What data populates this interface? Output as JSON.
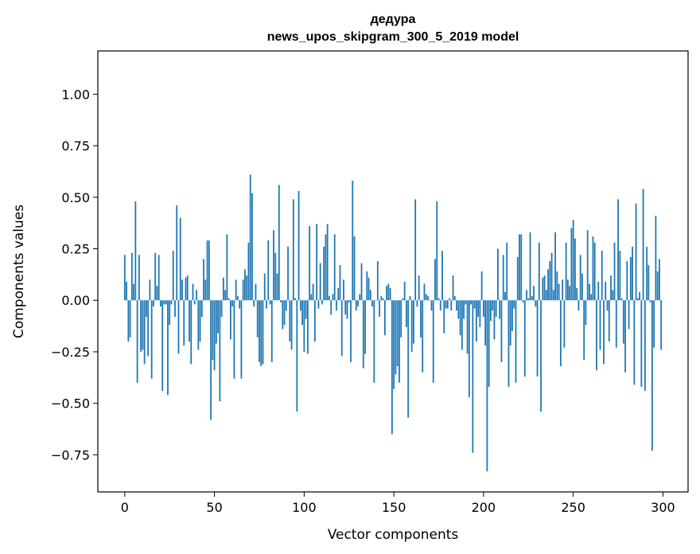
{
  "chart_data": {
    "type": "bar",
    "title": "дедура",
    "subtitle": "news_upos_skipgram_300_5_2019 model",
    "xlabel": "Vector components",
    "ylabel": "Components values",
    "xlim": [
      -15,
      314
    ],
    "ylim": [
      -0.93,
      1.21
    ],
    "xticks": [
      0,
      50,
      100,
      150,
      200,
      250,
      300
    ],
    "yticks": [
      -0.75,
      -0.5,
      -0.25,
      0.0,
      0.25,
      0.5,
      0.75,
      1.0
    ],
    "ytick_labels": [
      "−0.75",
      "−0.50",
      "−0.25",
      "0.00",
      "0.25",
      "0.50",
      "0.75",
      "1.00"
    ],
    "bar_color": "#1f77b4",
    "grid": false,
    "x": [
      0,
      1,
      2,
      3,
      4,
      5,
      6,
      7,
      8,
      9,
      10,
      11,
      12,
      13,
      14,
      15,
      16,
      17,
      18,
      19,
      20,
      21,
      22,
      23,
      24,
      25,
      26,
      27,
      28,
      29,
      30,
      31,
      32,
      33,
      34,
      35,
      36,
      37,
      38,
      39,
      40,
      41,
      42,
      43,
      44,
      45,
      46,
      47,
      48,
      49,
      50,
      51,
      52,
      53,
      54,
      55,
      56,
      57,
      58,
      59,
      60,
      61,
      62,
      63,
      64,
      65,
      66,
      67,
      68,
      69,
      70,
      71,
      72,
      73,
      74,
      75,
      76,
      77,
      78,
      79,
      80,
      81,
      82,
      83,
      84,
      85,
      86,
      87,
      88,
      89,
      90,
      91,
      92,
      93,
      94,
      95,
      96,
      97,
      98,
      99,
      100,
      101,
      102,
      103,
      104,
      105,
      106,
      107,
      108,
      109,
      110,
      111,
      112,
      113,
      114,
      115,
      116,
      117,
      118,
      119,
      120,
      121,
      122,
      123,
      124,
      125,
      126,
      127,
      128,
      129,
      130,
      131,
      132,
      133,
      134,
      135,
      136,
      137,
      138,
      139,
      140,
      141,
      142,
      143,
      144,
      145,
      146,
      147,
      148,
      149,
      150,
      151,
      152,
      153,
      154,
      155,
      156,
      157,
      158,
      159,
      160,
      161,
      162,
      163,
      164,
      165,
      166,
      167,
      168,
      169,
      170,
      171,
      172,
      173,
      174,
      175,
      176,
      177,
      178,
      179,
      180,
      181,
      182,
      183,
      184,
      185,
      186,
      187,
      188,
      189,
      190,
      191,
      192,
      193,
      194,
      195,
      196,
      197,
      198,
      199,
      200,
      201,
      202,
      203,
      204,
      205,
      206,
      207,
      208,
      209,
      210,
      211,
      212,
      213,
      214,
      215,
      216,
      217,
      218,
      219,
      220,
      221,
      222,
      223,
      224,
      225,
      226,
      227,
      228,
      229,
      230,
      231,
      232,
      233,
      234,
      235,
      236,
      237,
      238,
      239,
      240,
      241,
      242,
      243,
      244,
      245,
      246,
      247,
      248,
      249,
      250,
      251,
      252,
      253,
      254,
      255,
      256,
      257,
      258,
      259,
      260,
      261,
      262,
      263,
      264,
      265,
      266,
      267,
      268,
      269,
      270,
      271,
      272,
      273,
      274,
      275,
      276,
      277,
      278,
      279,
      280,
      281,
      282,
      283,
      284,
      285,
      286,
      287,
      288,
      289,
      290,
      291,
      292,
      293,
      294,
      295,
      296,
      297,
      298,
      299
    ],
    "values": [
      0.22,
      0.09,
      -0.2,
      -0.18,
      0.23,
      0.08,
      0.48,
      -0.4,
      0.22,
      -0.25,
      -0.24,
      -0.31,
      -0.08,
      -0.27,
      0.1,
      -0.38,
      -0.03,
      0.23,
      0.07,
      0.22,
      -0.03,
      -0.44,
      -0.02,
      -0.02,
      -0.46,
      -0.12,
      -0.02,
      0.24,
      -0.08,
      0.46,
      -0.26,
      0.4,
      0.1,
      -0.22,
      0.11,
      0.12,
      -0.2,
      -0.31,
      0.08,
      -0.02,
      0.05,
      -0.24,
      -0.2,
      -0.08,
      0.2,
      0.1,
      0.29,
      0.29,
      -0.58,
      -0.29,
      -0.34,
      -0.21,
      -0.16,
      -0.49,
      -0.08,
      0.11,
      0.05,
      0.32,
      0.01,
      -0.19,
      -0.03,
      -0.38,
      0.1,
      0.02,
      -0.04,
      -0.38,
      0.1,
      0.15,
      0.12,
      0.28,
      0.61,
      0.52,
      -0.03,
      0.08,
      -0.18,
      -0.3,
      -0.32,
      -0.31,
      0.13,
      -0.04,
      0.29,
      -0.02,
      -0.3,
      0.34,
      0.23,
      0.13,
      0.56,
      -0.01,
      -0.14,
      -0.12,
      -0.05,
      0.26,
      -0.2,
      -0.24,
      0.49,
      0.01,
      -0.54,
      0.53,
      -0.05,
      -0.12,
      -0.25,
      -0.09,
      -0.26,
      0.36,
      0.03,
      0.08,
      -0.2,
      0.37,
      -0.04,
      0.18,
      -0.02,
      0.26,
      0.32,
      0.37,
      0.02,
      -0.07,
      0.03,
      0.32,
      -0.05,
      0.06,
      0.17,
      -0.27,
      0.1,
      -0.07,
      -0.09,
      -0.01,
      -0.3,
      0.58,
      0.31,
      -0.05,
      -0.03,
      0.03,
      0.18,
      -0.33,
      -0.26,
      0.14,
      0.11,
      0.05,
      -0.03,
      -0.4,
      0.0,
      0.19,
      -0.08,
      0.02,
      0.01,
      -0.17,
      0.07,
      0.08,
      0.06,
      -0.65,
      -0.43,
      -0.36,
      -0.32,
      -0.4,
      -0.18,
      0.01,
      0.09,
      -0.13,
      -0.57,
      0.02,
      -0.25,
      -0.21,
      0.49,
      -0.03,
      0.12,
      -0.18,
      -0.35,
      0.08,
      0.03,
      0.02,
      0.0,
      -0.05,
      -0.4,
      0.2,
      0.48,
      0.01,
      -0.05,
      0.24,
      -0.16,
      -0.04,
      -0.04,
      0.01,
      -0.05,
      0.12,
      0.02,
      -0.05,
      -0.09,
      -0.17,
      -0.24,
      -0.09,
      -0.02,
      -0.26,
      -0.47,
      -0.02,
      -0.74,
      -0.04,
      -0.2,
      -0.08,
      -0.13,
      0.14,
      -0.08,
      -0.22,
      -0.83,
      -0.42,
      -0.1,
      -0.05,
      -0.19,
      -0.08,
      0.25,
      -0.09,
      -0.3,
      0.22,
      0.04,
      0.28,
      -0.42,
      -0.22,
      -0.15,
      -0.04,
      -0.4,
      0.21,
      0.32,
      0.32,
      -0.01,
      -0.37,
      0.05,
      0.01,
      0.33,
      0.02,
      0.07,
      -0.03,
      -0.37,
      0.28,
      -0.54,
      0.11,
      0.12,
      0.05,
      0.15,
      0.19,
      0.23,
      0.05,
      0.33,
      0.14,
      0.08,
      -0.32,
      0.1,
      -0.23,
      0.28,
      0.1,
      0.07,
      0.35,
      0.39,
      0.3,
      0.06,
      -0.05,
      0.22,
      0.13,
      -0.29,
      -0.12,
      0.34,
      0.08,
      0.03,
      0.31,
      0.28,
      -0.34,
      0.09,
      -0.24,
      0.24,
      -0.31,
      0.09,
      -0.05,
      -0.2,
      0.12,
      0.05,
      0.28,
      -0.23,
      0.49,
      0.24,
      0.01,
      -0.21,
      -0.35,
      0.19,
      -0.14,
      0.21,
      0.26,
      -0.41,
      0.47,
      0.01,
      0.04,
      -0.42,
      0.54,
      -0.44,
      0.26,
      0.17,
      -0.01,
      -0.73,
      -0.23,
      0.41,
      0.14,
      0.2,
      -0.24
    ]
  }
}
